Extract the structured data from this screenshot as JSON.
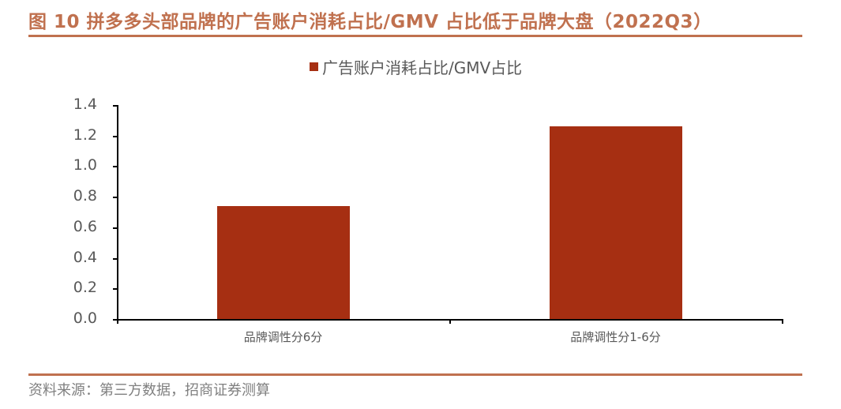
{
  "title": "图 10 拼多多头部品牌的广告账户消耗占比/GMV 占比低于品牌大盘（2022Q3）",
  "source": "资料来源：第三方数据，招商证券测算",
  "colors": {
    "accent": "#C0714F",
    "bar": "#A62F12",
    "text": "#595959"
  },
  "chart_data": {
    "type": "bar",
    "title": "图 10 拼多多头部品牌的广告账户消耗占比/GMV 占比低于品牌大盘（2022Q3）",
    "categories": [
      "品牌调性分6分",
      "品牌调性分1-6分"
    ],
    "series": [
      {
        "name": "广告账户消耗占比/GMV占比",
        "values": [
          0.74,
          1.26
        ]
      }
    ],
    "xlabel": "",
    "ylabel": "",
    "ylim": [
      0,
      1.4
    ],
    "yticks": [
      "0.0",
      "0.2",
      "0.4",
      "0.6",
      "0.8",
      "1.0",
      "1.2",
      "1.4"
    ],
    "grid": false,
    "legend_position": "top"
  }
}
